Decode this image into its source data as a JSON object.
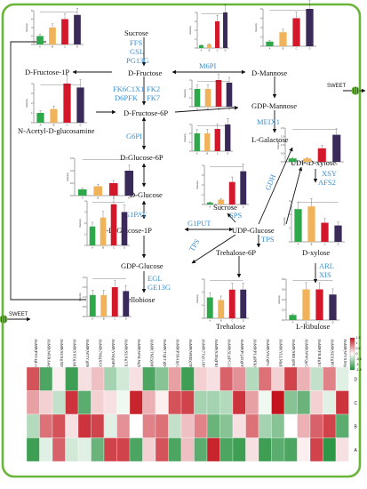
{
  "metabolites": {
    "sucrose_top": "Sucrose",
    "fructose": "D-Fructose",
    "mannose": "D-Mannose",
    "fructose_1p": "D-Fructose-1P",
    "fructose_6p": "D-Fructose-6P",
    "nag": "N-Acetyl-D-glucosamine",
    "gdp_mannose": "GDP-Mannose",
    "glucose_6p": "D-Glucose-6P",
    "galactose": "L-Galactose",
    "glucose": "D-Glucose",
    "sucrose_mid": "Sucrose",
    "udp_xylose": "UDP-D-xylose",
    "alpha_g1p": "α-D-Glucose-1P",
    "udp_glucose": "UDP-Glucose",
    "xylose": "D-xylose",
    "trehalose_6p": "Trehalose-6P",
    "gdp_glucose": "GDP-Glucose",
    "cellobiose": "Cellobiose",
    "trehalose": "Trehalose",
    "ribulose": "L-Ribulose"
  },
  "enzymes": {
    "ffs": "FFS",
    "gsl": "GSL",
    "pg13g": "PG13G",
    "m6pi": "M6PI",
    "fk6c1x1": "FK6C1X1",
    "fk2": "FK2",
    "d6pfk": "D6PFK",
    "fk7": "FK7",
    "g6pi": "G6PI",
    "meix1": "MEIX1",
    "g1pat": "G1PAT",
    "g1put": "G1PUT",
    "sps": "SPS",
    "gdh": "GDH",
    "tps_right": "TPS",
    "tps_left": "TPS",
    "xsy": "XSY",
    "afs2": "AFS2",
    "arl": "ARL",
    "xis": "XIS",
    "egl": "EGL",
    "ge13g": "GE13G"
  },
  "transporters": {
    "sweet_right": "SWEET",
    "sweet_left": "SWEET"
  },
  "colors": {
    "membrane": "#6bb43a",
    "enzyme_text": "#3a8fd0",
    "bar_1": "#2ea84a",
    "bar_2": "#f0b35a",
    "bar_3": "#d2182a",
    "bar_4": "#3a2a5a",
    "heat_low": "#1f8f3a",
    "heat_mid": "#ffffff",
    "heat_high": "#c4141e"
  },
  "mini_charts": {
    "ylabel": "Intensity",
    "series_labels": [
      "A",
      "B",
      "C",
      "D"
    ],
    "charts": [
      {
        "id": "fructose_1p",
        "values": [
          2,
          4,
          6,
          7
        ],
        "ticks": [
          "0",
          "2",
          "4",
          "6",
          "8"
        ]
      },
      {
        "id": "sucrose_top",
        "values": [
          0.3,
          0.4,
          3.0,
          4.0
        ],
        "ticks": [
          "0",
          "1",
          "2",
          "3",
          "4"
        ]
      },
      {
        "id": "mannose",
        "values": [
          1,
          3,
          6,
          8
        ],
        "ticks": [
          "0",
          "2",
          "4",
          "6",
          "8"
        ]
      },
      {
        "id": "nag",
        "values": [
          1,
          1.4,
          4,
          3.6
        ],
        "ticks": [
          "0",
          "1",
          "2",
          "3",
          "4"
        ]
      },
      {
        "id": "gdp_mannose",
        "values": [
          2,
          2,
          3,
          2.7
        ],
        "ticks": [
          "0",
          "1",
          "2",
          "3"
        ]
      },
      {
        "id": "glucose_6p",
        "values": [
          2,
          2,
          2.5,
          3
        ],
        "ticks": [
          "0",
          "1",
          "2",
          "3"
        ]
      },
      {
        "id": "galactose",
        "values": [
          0.2,
          0.2,
          0.8,
          1.6
        ],
        "ticks": [
          "0.0",
          "0.5",
          "1.0",
          "1.5",
          "2.0"
        ]
      },
      {
        "id": "glucose",
        "values": [
          0.1,
          0.15,
          0.2,
          0.4
        ],
        "ticks": [
          "0.0",
          "0.2",
          "0.4",
          "0.6"
        ]
      },
      {
        "id": "sucrose_mid",
        "values": [
          0.2,
          0.5,
          2.3,
          3.4
        ],
        "ticks": [
          "0",
          "1",
          "2",
          "3",
          "4"
        ]
      },
      {
        "id": "udp_xylose",
        "values": [
          2.4,
          2.6,
          1.4,
          1.2
        ],
        "ticks": [
          "0",
          "1",
          "2",
          "3"
        ]
      },
      {
        "id": "alpha_g1p",
        "values": [
          1.7,
          2.5,
          3.7,
          3.0
        ],
        "ticks": [
          "0",
          "1",
          "2",
          "3",
          "4"
        ]
      },
      {
        "id": "cellobiose",
        "values": [
          1.1,
          1.1,
          1.5,
          1.3
        ],
        "ticks": [
          "0.0",
          "0.5",
          "1.0",
          "1.5",
          "2.0"
        ]
      },
      {
        "id": "trehalose",
        "values": [
          1.6,
          1.4,
          2.2,
          2.2
        ],
        "ticks": [
          "0",
          "1",
          "2",
          "3"
        ]
      },
      {
        "id": "ribulose",
        "values": [
          0.1,
          0.6,
          0.6,
          0.5
        ],
        "ticks": [
          "0.0",
          "0.2",
          "0.4",
          "0.6",
          "0.8"
        ]
      }
    ]
  },
  "heatmap": {
    "genes": [
      "AhMP(PSY4)LG(PUT)",
      "AhMP(WFRA4)SGE2",
      "AhMP(SLN)(XIS)",
      "AhMP(SXS)(ARL)",
      "AhMP(WTY)(FK2)",
      "AhMP(7M)(XSY)",
      "AhMP(YM)(SPS)",
      "AhMP(SLN)(TXG6PI)",
      "AhMP(WSLN)(MEIX1)",
      "AhMP(TM2)(M6PI)",
      "AhMP(TQLT)(D6PFK)",
      "AhMP(PS9Al)(GDH)",
      "AhMP(WEB)(TPS)",
      "AhMP(7T)(G1PAT)",
      "AhMP(S2H)(FK6C1X1)",
      "AhMP(5L)(PG13G)",
      "AhMP(PQ.D)(FFS)",
      "AhMP(PL)(PFKG4E1)",
      "AhMP(VA2)(PG13G)",
      "AhMP(YLLM)(FFS)",
      "AhMP(SRE)(FK7)",
      "AhMP(WWQ)(GSL)",
      "AhMP(FR.R)(EGL)",
      "AhMP(SEX)(PF13G)",
      "AhMP(WYXSS)(TPS)"
    ],
    "rows": [
      "D",
      "C",
      "B",
      "A"
    ],
    "values": [
      [
        1.1,
        -1.2,
        0.1,
        -1.3,
        0.2,
        0.4,
        -0.6,
        -0.3,
        0.2,
        -1.2,
        -0.8,
        0.6,
        -1.3,
        0.3,
        0.2,
        1.0,
        0.7,
        -0.5,
        0.9,
        0.3,
        1.2,
        0.5,
        -0.4,
        0.8,
        -0.2
      ],
      [
        0.6,
        0.3,
        -0.4,
        1.3,
        -1.1,
        0.3,
        0.2,
        -0.1,
        1.4,
        0.5,
        0.1,
        1.1,
        1.2,
        -0.6,
        -0.6,
        -0.5,
        1.3,
        0.6,
        -0.1,
        1.5,
        -0.8,
        -1.0,
        0.3,
        -0.2,
        1.3
      ],
      [
        -0.5,
        0.9,
        1.1,
        0.2,
        1.3,
        1.2,
        -0.2,
        0.7,
        0.0,
        0.8,
        0.9,
        -0.4,
        0.4,
        0.8,
        -1.0,
        -0.8,
        0.2,
        0.9,
        -0.6,
        -0.8,
        0.0,
        0.5,
        1.0,
        1.2,
        -1.1
      ],
      [
        -1.3,
        -0.2,
        1.0,
        -0.3,
        -0.2,
        -1.0,
        1.2,
        1.2,
        -1.2,
        0.3,
        1.1,
        -1.2,
        0.4,
        -1.1,
        1.4,
        -1.2,
        -1.3,
        0.2,
        -1.3,
        -1.1,
        -1.2,
        0.1,
        1.2,
        -1.4,
        0.2
      ]
    ],
    "legend_ticks": [
      "1.5",
      "1",
      "0.5",
      "0",
      "-0.5",
      "-1",
      "-1.5"
    ]
  }
}
